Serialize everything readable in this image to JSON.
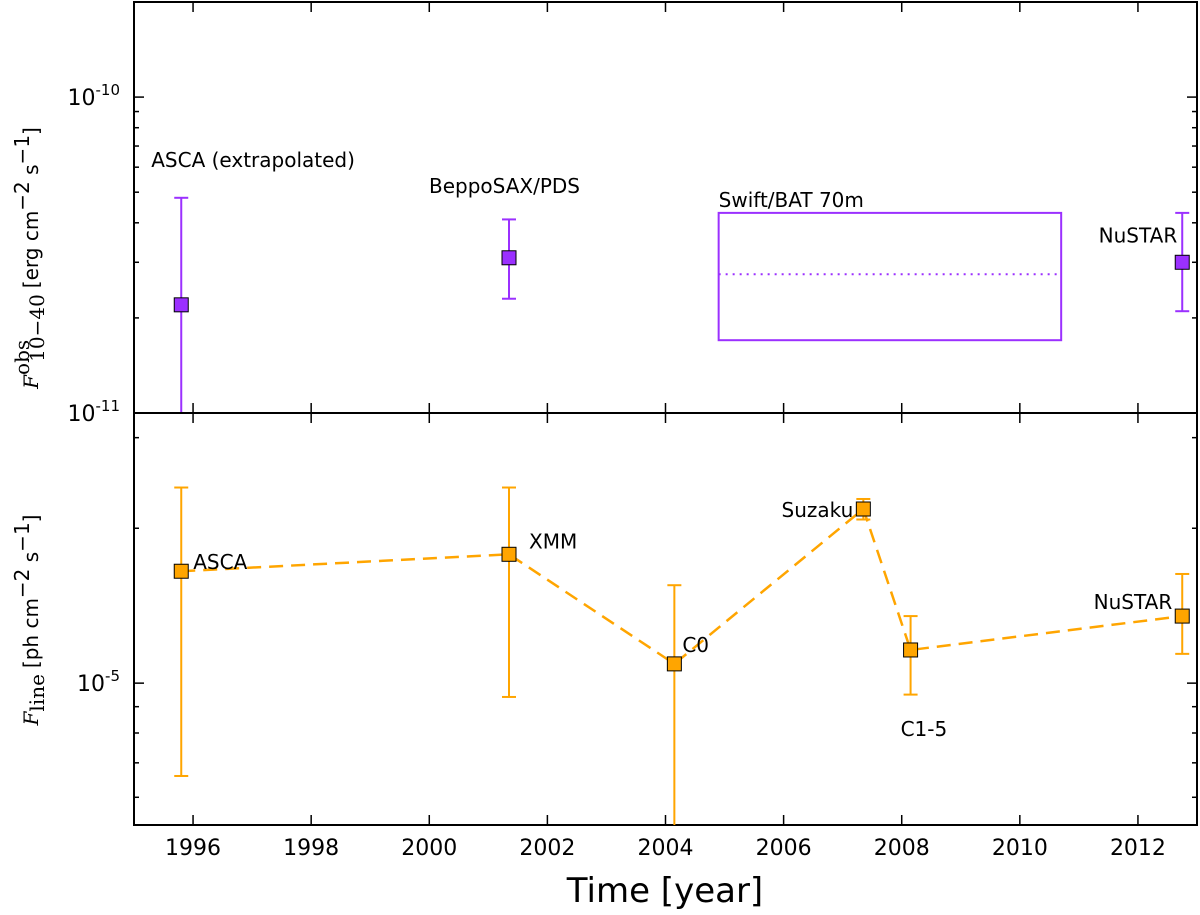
{
  "chart_data": {
    "type": "scatter",
    "xlabel": "Time [year]",
    "xlim": [
      1995,
      2013
    ],
    "x_ticks": [
      1996,
      1998,
      2000,
      2002,
      2004,
      2006,
      2008,
      2010,
      2012
    ],
    "panels": [
      {
        "ylabel": {
          "symbol": "F",
          "sup": "obs",
          "sub": "10−40",
          "unit": "[erg cm",
          "unit_exp1": "−2",
          "unit_mid": " s",
          "unit_exp2": "−1",
          "unit_end": "]"
        },
        "yscale": "log",
        "ylim": [
          1e-11,
          2e-10
        ],
        "y_tick_labels": [
          {
            "value": 1e-10,
            "base": "10",
            "exp": "-10"
          },
          {
            "value": 1e-11,
            "base": "10",
            "exp": "-11"
          }
        ],
        "color": "#9b30ff",
        "marker_color": "#9b30ff",
        "points": [
          {
            "label": "ASCA (extrapolated)",
            "x": 1995.8,
            "y": 2.2e-11,
            "ylo": 1e-11,
            "yhi": 4.8e-11
          },
          {
            "label": "BeppoSAX/PDS",
            "x": 2001.35,
            "y": 3.1e-11,
            "ylo": 2.3e-11,
            "yhi": 4.1e-11
          },
          {
            "label": "NuSTAR",
            "x": 2012.75,
            "y": 3e-11,
            "ylo": 2.1e-11,
            "yhi": 4.3e-11
          }
        ],
        "band": {
          "label": "Swift/BAT 70m",
          "x0": 2004.9,
          "x1": 2010.7,
          "ylo": 1.7e-11,
          "yhi": 4.3e-11,
          "y": 2.75e-11
        }
      },
      {
        "ylabel": {
          "symbol": "F",
          "sub": "line",
          "unit": "[ph cm",
          "unit_exp1": "−2",
          "unit_mid": " s",
          "unit_exp2": "−1",
          "unit_end": "]"
        },
        "yscale": "log",
        "ylim": [
          5.3e-06,
          3.35e-05
        ],
        "y_tick_labels": [
          {
            "value": 1e-05,
            "base": "10",
            "exp": "-5"
          }
        ],
        "color": "#ffa500",
        "marker_color": "#ffa500",
        "connect": "dashed",
        "points": [
          {
            "label": "ASCA",
            "x": 1995.8,
            "y": 1.65e-05,
            "ylo": 6.6e-06,
            "yhi": 2.4e-05
          },
          {
            "label": "XMM",
            "x": 2001.35,
            "y": 1.78e-05,
            "ylo": 9.4e-06,
            "yhi": 2.4e-05
          },
          {
            "label": "C0",
            "x": 2004.15,
            "y": 1.09e-05,
            "ylo": 5.3e-06,
            "yhi": 1.55e-05
          },
          {
            "label": "Suzaku",
            "x": 2007.35,
            "y": 2.18e-05,
            "ylo": 2.08e-05,
            "yhi": 2.28e-05
          },
          {
            "label": "C1-5",
            "x": 2008.15,
            "y": 1.16e-05,
            "ylo": 9.5e-06,
            "yhi": 1.35e-05
          },
          {
            "label": "NuSTAR",
            "x": 2012.75,
            "y": 1.35e-05,
            "ylo": 1.14e-05,
            "yhi": 1.63e-05
          }
        ]
      }
    ]
  }
}
